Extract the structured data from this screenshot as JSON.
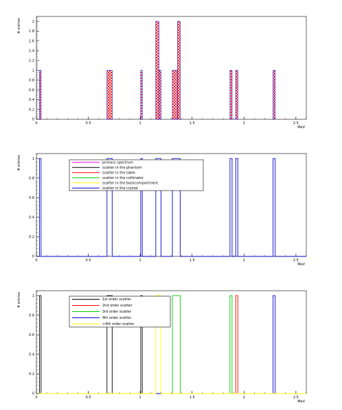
{
  "chart_data": [
    {
      "type": "histogram",
      "xlabel": "MeV",
      "ylabel": "# entries",
      "xlim": [
        0,
        2.6
      ],
      "ylim": [
        0,
        2.1
      ],
      "yticks": [
        0,
        0.2,
        0.4,
        0.6,
        0.8,
        1,
        1.2,
        1.4,
        1.6,
        1.8,
        2
      ],
      "xticks": [
        0,
        0.5,
        1,
        1.5,
        2,
        2.5
      ],
      "xtick_labels": [
        "0",
        "0.5",
        "1",
        "1.5",
        "2",
        "2.5"
      ],
      "ytick_labels": [
        "0",
        "0.2",
        "0.4",
        "0.6",
        "0.8",
        "1",
        "1.2",
        "1.4",
        "1.6",
        "1.8",
        "2"
      ],
      "fill": "red-hatched",
      "colors": {
        "fill": "#ff0000",
        "line": "#0000cc"
      },
      "bins": [
        {
          "x0": 0.03,
          "x1": 0.045,
          "y": 1
        },
        {
          "x0": 0.68,
          "x1": 0.73,
          "y": 1
        },
        {
          "x0": 1.005,
          "x1": 1.02,
          "y": 1
        },
        {
          "x0": 1.15,
          "x1": 1.18,
          "y": 2
        },
        {
          "x0": 1.18,
          "x1": 1.2,
          "y": 1
        },
        {
          "x0": 1.31,
          "x1": 1.36,
          "y": 1
        },
        {
          "x0": 1.36,
          "x1": 1.385,
          "y": 2
        },
        {
          "x0": 1.865,
          "x1": 1.885,
          "y": 1
        },
        {
          "x0": 1.92,
          "x1": 1.94,
          "y": 1
        },
        {
          "x0": 2.28,
          "x1": 2.3,
          "y": 1
        }
      ]
    },
    {
      "type": "histogram",
      "xlabel": "MeV",
      "ylabel": "# entries",
      "xlim": [
        0,
        2.6
      ],
      "ylim": [
        0,
        1.05
      ],
      "yticks": [
        0,
        0.2,
        0.4,
        0.6,
        0.8,
        1
      ],
      "xticks": [
        0,
        0.5,
        1,
        1.5,
        2,
        2.5
      ],
      "xtick_labels": [
        "0",
        "0.5",
        "1",
        "1.5",
        "2",
        "2.5"
      ],
      "ytick_labels": [
        "0",
        "0.2",
        "0.4",
        "0.6",
        "0.8",
        "1"
      ],
      "legend": "top-center",
      "series": [
        {
          "name": "primary spectrum",
          "color": "#ff00ff",
          "bins": []
        },
        {
          "name": "scatter in the phantom",
          "color": "#000000",
          "bins": []
        },
        {
          "name": "scatter in the table",
          "color": "#ff0000",
          "bins": []
        },
        {
          "name": "scatter in the collimator",
          "color": "#00cc00",
          "bins": []
        },
        {
          "name": "scatter in the backcompartment",
          "color": "#ffff00",
          "bins": []
        },
        {
          "name": "scatter in the crystal",
          "color": "#0000cc",
          "bins": [
            {
              "x0": 0.03,
              "x1": 0.045,
              "y": 1
            },
            {
              "x0": 0.68,
              "x1": 0.73,
              "y": 1
            },
            {
              "x0": 1.005,
              "x1": 1.02,
              "y": 1
            },
            {
              "x0": 1.15,
              "x1": 1.2,
              "y": 1
            },
            {
              "x0": 1.31,
              "x1": 1.385,
              "y": 1
            },
            {
              "x0": 1.865,
              "x1": 1.885,
              "y": 1
            },
            {
              "x0": 1.92,
              "x1": 1.94,
              "y": 1
            },
            {
              "x0": 2.28,
              "x1": 2.3,
              "y": 1
            }
          ]
        }
      ]
    },
    {
      "type": "histogram",
      "xlabel": "MeV",
      "ylabel": "# entries",
      "xlim": [
        0,
        2.6
      ],
      "ylim": [
        0,
        1.05
      ],
      "yticks": [
        0,
        0.2,
        0.4,
        0.6,
        0.8,
        1
      ],
      "xticks": [
        0,
        0.5,
        1,
        1.5,
        2,
        2.5
      ],
      "xtick_labels": [
        "0",
        "0.5",
        "1",
        "1.5",
        "2",
        "2.5"
      ],
      "ytick_labels": [
        "0",
        "0.2",
        "0.4",
        "0.6",
        "0.8",
        "1"
      ],
      "legend": "top-center",
      "series": [
        {
          "name": "1st order scatter",
          "color": "#000000",
          "bins": [
            {
              "x0": 0.03,
              "x1": 0.045,
              "y": 1
            },
            {
              "x0": 0.68,
              "x1": 0.73,
              "y": 1
            },
            {
              "x0": 1.005,
              "x1": 1.02,
              "y": 1
            }
          ]
        },
        {
          "name": "2nd order scatter",
          "color": "#ff0000",
          "bins": [
            {
              "x0": 1.92,
              "x1": 1.94,
              "y": 1
            }
          ]
        },
        {
          "name": "3rd order scatter",
          "color": "#00cc00",
          "bins": [
            {
              "x0": 1.31,
              "x1": 1.385,
              "y": 1
            },
            {
              "x0": 1.865,
              "x1": 1.885,
              "y": 1
            }
          ]
        },
        {
          "name": "4th order scatter",
          "color": "#0000cc",
          "bins": [
            {
              "x0": 2.28,
              "x1": 2.3,
              "y": 1
            }
          ]
        },
        {
          "name": ">4th order scatter",
          "color": "#ffff00",
          "bins": [
            {
              "x0": 1.15,
              "x1": 1.2,
              "y": 1
            }
          ]
        }
      ]
    }
  ]
}
